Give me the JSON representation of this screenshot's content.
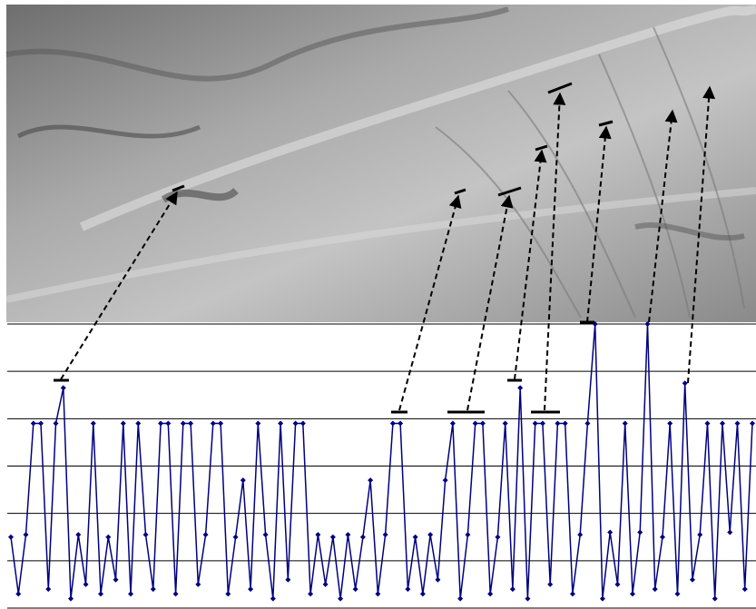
{
  "chart_data": {
    "type": "line",
    "color": "#000080",
    "grid": true,
    "ylim": [
      0,
      6
    ],
    "yticks": [
      0,
      1,
      2,
      3,
      4,
      5,
      6
    ],
    "values": [
      1.5,
      0.3,
      1.55,
      3.9,
      3.9,
      0.4,
      3.9,
      4.65,
      0.2,
      1.55,
      0.5,
      3.9,
      0.3,
      1.5,
      0.6,
      3.9,
      0.3,
      3.9,
      1.55,
      0.4,
      3.9,
      3.9,
      0.3,
      3.9,
      3.9,
      0.5,
      1.55,
      3.9,
      3.9,
      0.3,
      1.5,
      2.7,
      0.4,
      3.9,
      1.55,
      0.2,
      3.9,
      0.6,
      3.9,
      3.9,
      0.3,
      1.55,
      0.5,
      1.5,
      0.2,
      1.55,
      0.4,
      1.5,
      2.7,
      0.3,
      1.55,
      3.9,
      3.9,
      0.4,
      1.5,
      0.3,
      1.55,
      0.6,
      2.7,
      3.9,
      0.2,
      1.55,
      3.9,
      3.9,
      0.3,
      1.5,
      3.9,
      0.4,
      4.65,
      0.2,
      3.9,
      3.9,
      0.5,
      3.9,
      3.9,
      0.3,
      1.55,
      3.9,
      6.0,
      0.2,
      1.6,
      0.5,
      3.9,
      0.3,
      1.6,
      6.0,
      0.4,
      1.5,
      3.9,
      0.3,
      4.75,
      0.6,
      1.55,
      3.9,
      0.2,
      3.9,
      1.6,
      3.9,
      0.4,
      3.9
    ]
  }
}
